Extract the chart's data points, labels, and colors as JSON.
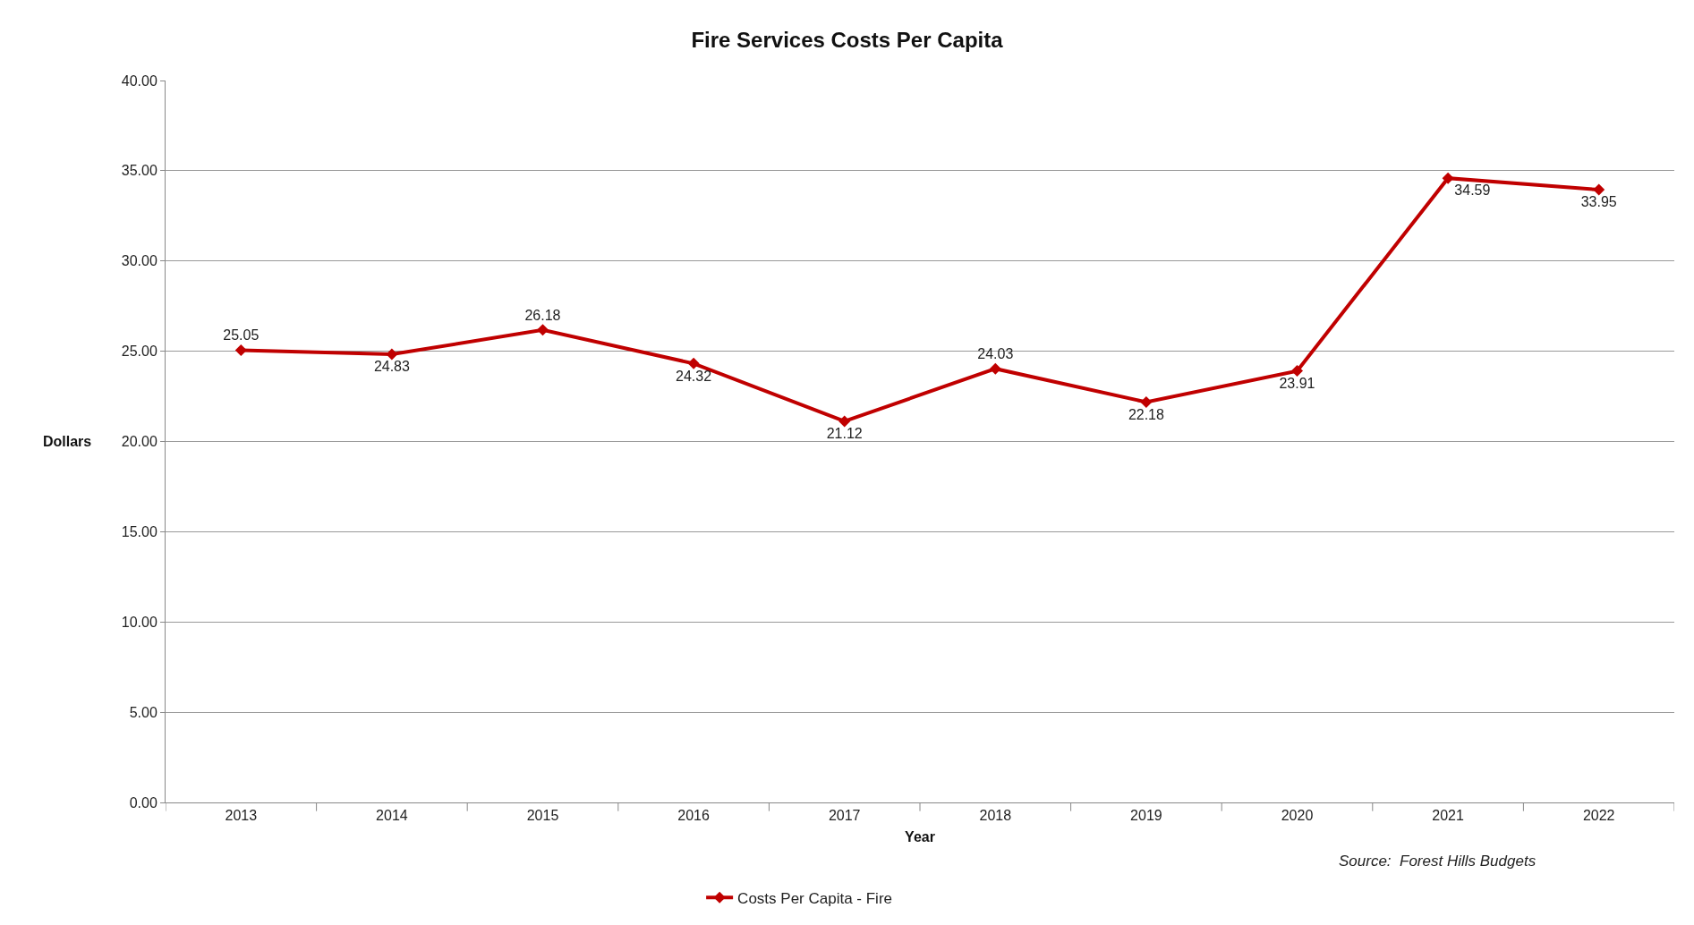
{
  "chart_data": {
    "type": "line",
    "title": "Fire Services Costs Per Capita",
    "xlabel": "Year",
    "ylabel": "Dollars",
    "categories": [
      "2013",
      "2014",
      "2015",
      "2016",
      "2017",
      "2018",
      "2019",
      "2020",
      "2021",
      "2022"
    ],
    "series": [
      {
        "name": "Costs Per Capita - Fire",
        "color": "#c00000",
        "values": [
          25.05,
          24.83,
          26.18,
          24.32,
          21.12,
          24.03,
          22.18,
          23.91,
          34.59,
          33.95
        ]
      }
    ],
    "ylim": [
      0,
      40
    ],
    "yticks": [
      {
        "value": 0,
        "label": "0.00"
      },
      {
        "value": 5,
        "label": "5.00"
      },
      {
        "value": 10,
        "label": "10.00"
      },
      {
        "value": 15,
        "label": "15.00"
      },
      {
        "value": 20,
        "label": "20.00"
      },
      {
        "value": 25,
        "label": "25.00"
      },
      {
        "value": 30,
        "label": "30.00"
      },
      {
        "value": 35,
        "label": "35.00"
      },
      {
        "value": 40,
        "label": "40.00"
      }
    ],
    "grid": "y",
    "legend": "bottom",
    "marker": "diamond",
    "line_style": "solid",
    "data_labels": true,
    "annotations": [
      "Source:  Forest Hills Budgets"
    ]
  }
}
